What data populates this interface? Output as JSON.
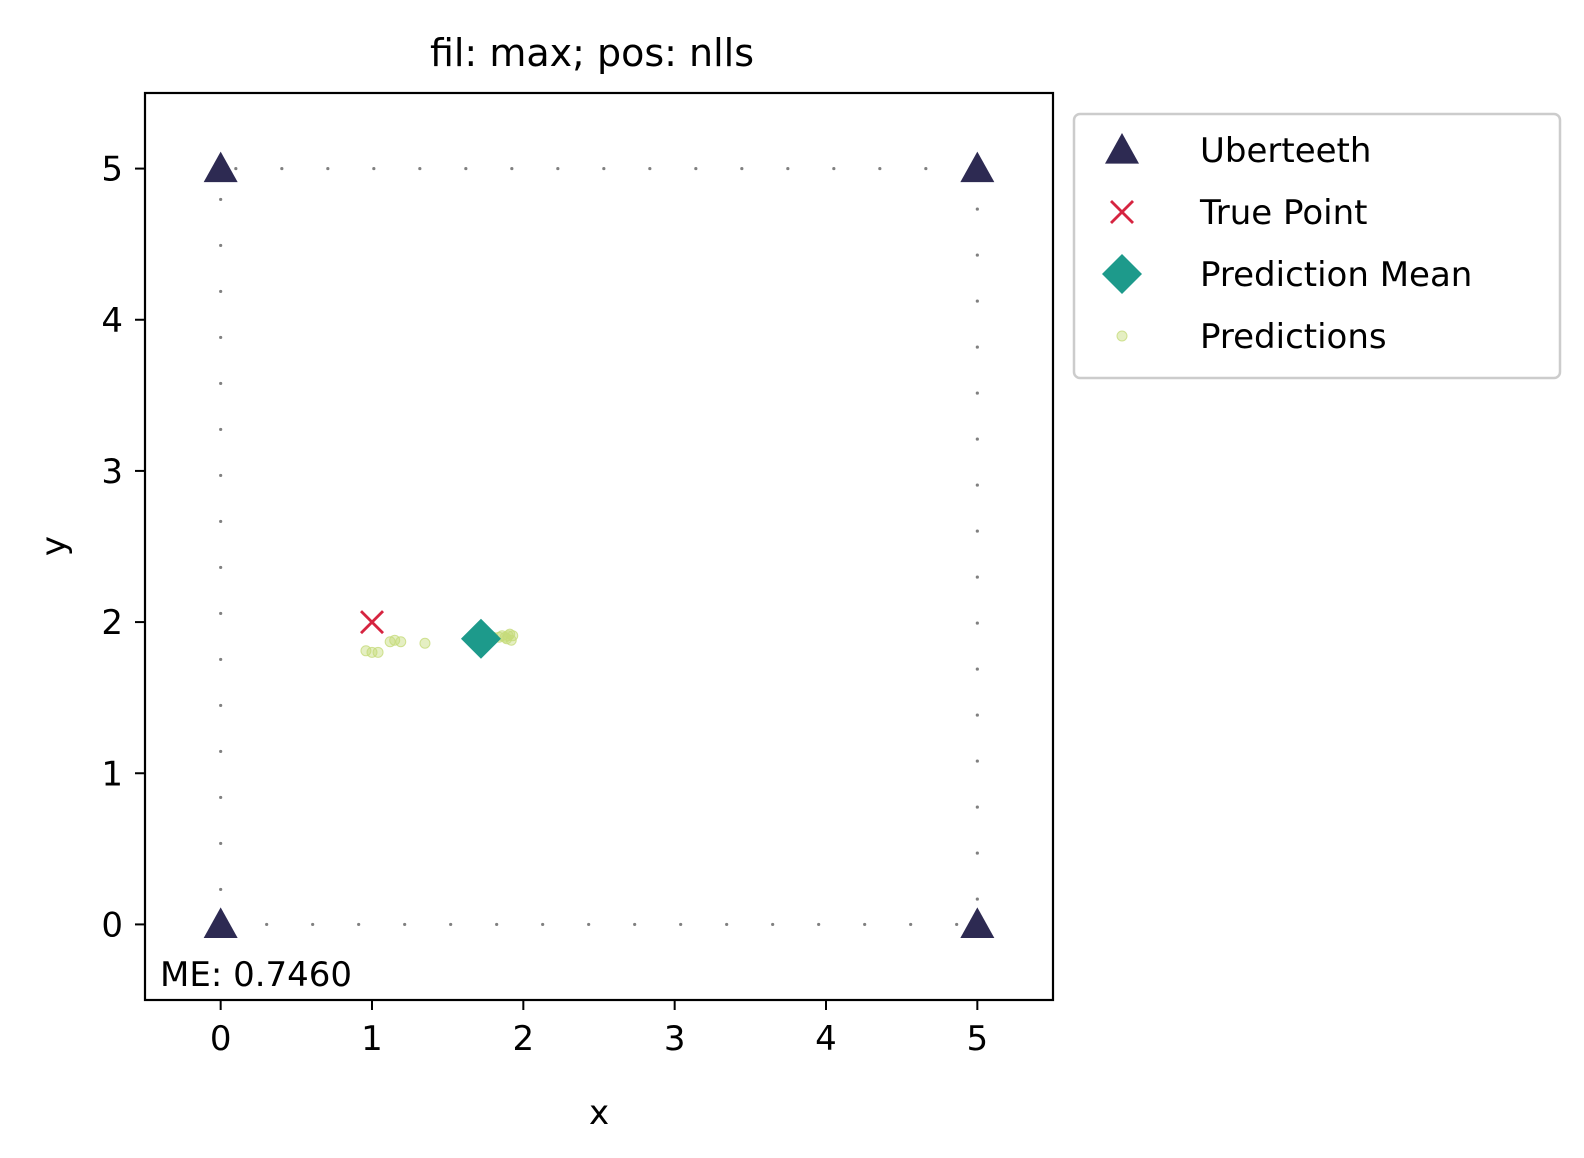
{
  "chart_data": {
    "type": "scatter",
    "title": "fil: max; pos: nlls",
    "xlabel": "x",
    "ylabel": "y",
    "xlim": [
      -0.5,
      5.5
    ],
    "ylim": [
      -0.5,
      5.5
    ],
    "xticks": [
      0,
      1,
      2,
      3,
      4,
      5
    ],
    "yticks": [
      0,
      1,
      2,
      3,
      4,
      5
    ],
    "xtick_labels": [
      "0",
      "1",
      "2",
      "3",
      "4",
      "5"
    ],
    "ytick_labels": [
      "0",
      "1",
      "2",
      "3",
      "4",
      "5"
    ],
    "grid": false,
    "legend_position": "outside-top-right",
    "annotation": "ME: 0.7460",
    "boundary": {
      "x": [
        0,
        5,
        5,
        0,
        0
      ],
      "y": [
        0,
        0,
        5,
        5,
        0
      ],
      "style": "dotted",
      "color": "#808080"
    },
    "series": [
      {
        "name": "Uberteeth",
        "marker": "triangle",
        "color": "#2d2a52",
        "points": [
          [
            0,
            0
          ],
          [
            5,
            0
          ],
          [
            0,
            5
          ],
          [
            5,
            5
          ]
        ]
      },
      {
        "name": "True Point",
        "marker": "x",
        "color": "#d62440",
        "points": [
          [
            1.0,
            2.0
          ]
        ]
      },
      {
        "name": "Prediction Mean",
        "marker": "diamond",
        "color": "#1d9a8b",
        "points": [
          [
            1.72,
            1.89
          ]
        ]
      },
      {
        "name": "Predictions",
        "marker": "dot",
        "color": "#c5db7a",
        "opacity": 0.45,
        "points": [
          [
            0.96,
            1.81
          ],
          [
            1.0,
            1.8
          ],
          [
            1.04,
            1.8
          ],
          [
            1.12,
            1.87
          ],
          [
            1.15,
            1.88
          ],
          [
            1.19,
            1.87
          ],
          [
            1.35,
            1.86
          ],
          [
            1.8,
            1.9
          ],
          [
            1.84,
            1.9
          ],
          [
            1.86,
            1.91
          ],
          [
            1.88,
            1.9
          ],
          [
            1.9,
            1.91
          ],
          [
            1.91,
            1.92
          ],
          [
            1.93,
            1.91
          ],
          [
            1.92,
            1.88
          ],
          [
            1.89,
            1.89
          ]
        ]
      }
    ]
  }
}
